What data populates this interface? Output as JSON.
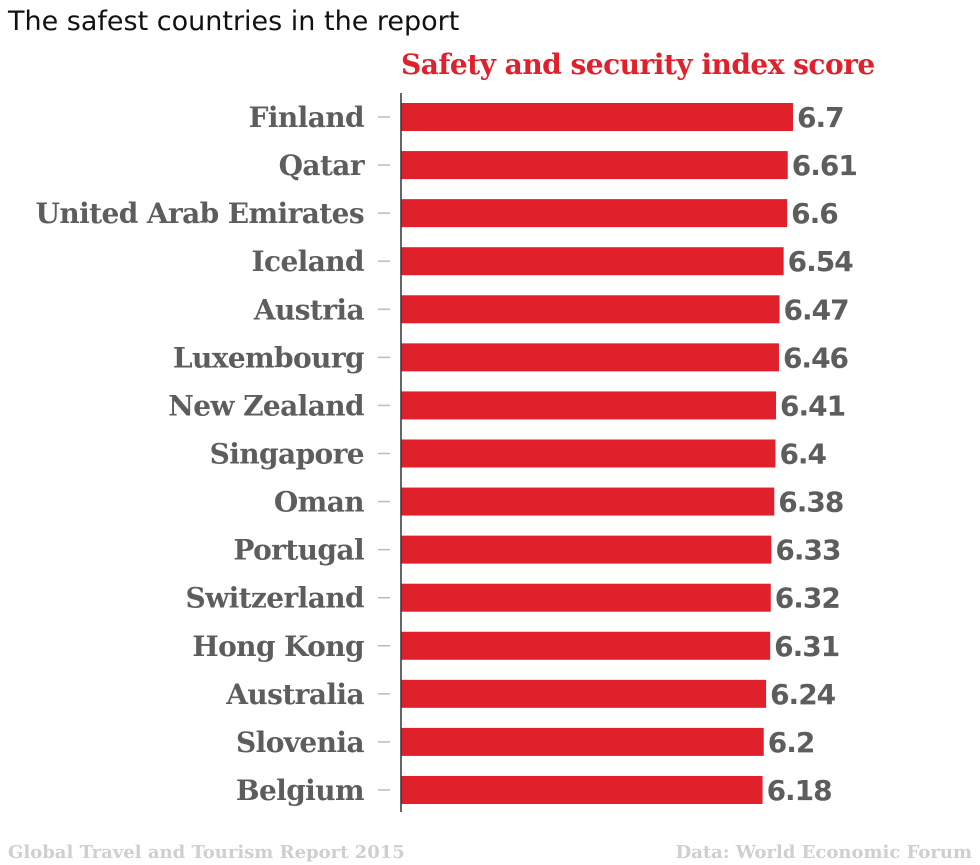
{
  "title": "The safest countries in the report",
  "series_title": "Safety and security index score",
  "footer_left": "Global Travel and Tourism Report 2015",
  "footer_right": "Data: World Economic Forum",
  "colors": {
    "bar": "#e0202a",
    "label": "#5d5d5d",
    "axis": "#333333",
    "tick": "#bbbbbb",
    "footer": "#cfcfcf"
  },
  "chart_data": {
    "type": "bar",
    "orientation": "horizontal",
    "categories": [
      "Finland",
      "Qatar",
      "United Arab Emirates",
      "Iceland",
      "Austria",
      "Luxembourg",
      "New Zealand",
      "Singapore",
      "Oman",
      "Portugal",
      "Switzerland",
      "Hong Kong",
      "Australia",
      "Slovenia",
      "Belgium"
    ],
    "values": [
      6.7,
      6.61,
      6.6,
      6.54,
      6.47,
      6.46,
      6.41,
      6.4,
      6.38,
      6.33,
      6.32,
      6.31,
      6.24,
      6.2,
      6.18
    ],
    "value_labels": [
      "6.7",
      "6.61",
      "6.6",
      "6.54",
      "6.47",
      "6.46",
      "6.41",
      "6.4",
      "6.38",
      "6.33",
      "6.32",
      "6.31",
      "6.24",
      "6.2",
      "6.18"
    ],
    "title": "Safety and security index score",
    "xlim": [
      0,
      6.7
    ],
    "grid": false,
    "data_labels": true
  }
}
